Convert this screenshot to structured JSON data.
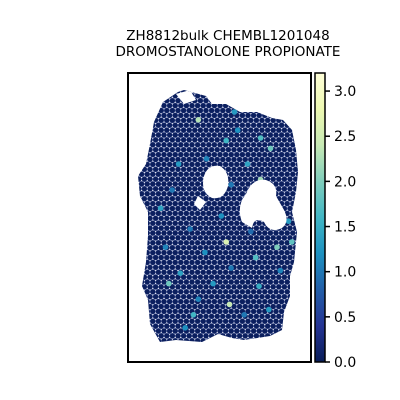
{
  "chart_data": {
    "type": "heatmap",
    "title_lines": [
      "ZH8812bulk CHEMBL1201048",
      "DROMOSTANOLONE PROPIONATE"
    ],
    "colorbar": {
      "min": 0.0,
      "max": 3.2,
      "ticks": [
        0.0,
        0.5,
        1.0,
        1.5,
        2.0,
        2.5,
        3.0
      ],
      "tick_labels": [
        "0.0",
        "0.5",
        "1.0",
        "1.5",
        "2.0",
        "2.5",
        "3.0"
      ],
      "colormap": "YlGnBu_r",
      "colors": [
        "#081d58",
        "#253494",
        "#225ea8",
        "#1d91c0",
        "#41b6c4",
        "#7fcdbb",
        "#c7e9b4",
        "#edf8b1",
        "#ffffd9"
      ]
    },
    "spots": {
      "background_value": 0.05,
      "background_color": "#0b1f5e",
      "highlights": [
        {
          "col": 0.38,
          "row": 0.13,
          "value": 2.3
        },
        {
          "col": 0.55,
          "row": 0.21,
          "value": 1.6
        },
        {
          "col": 0.62,
          "row": 0.17,
          "value": 1.2
        },
        {
          "col": 0.76,
          "row": 0.2,
          "value": 1.7
        },
        {
          "col": 0.82,
          "row": 0.24,
          "value": 1.9
        },
        {
          "col": 0.43,
          "row": 0.28,
          "value": 1.1
        },
        {
          "col": 0.68,
          "row": 0.3,
          "value": 1.4
        },
        {
          "col": 0.26,
          "row": 0.3,
          "value": 1.3
        },
        {
          "col": 0.76,
          "row": 0.36,
          "value": 2.2
        },
        {
          "col": 0.67,
          "row": 0.44,
          "value": 1.8
        },
        {
          "col": 0.8,
          "row": 0.43,
          "value": 1.5
        },
        {
          "col": 0.15,
          "row": 0.47,
          "value": 1.4
        },
        {
          "col": 0.52,
          "row": 0.5,
          "value": 1.2
        },
        {
          "col": 0.93,
          "row": 0.52,
          "value": 1.3
        },
        {
          "col": 0.33,
          "row": 0.55,
          "value": 1.0
        },
        {
          "col": 0.7,
          "row": 0.56,
          "value": 0.9
        },
        {
          "col": 0.55,
          "row": 0.6,
          "value": 2.6
        },
        {
          "col": 0.18,
          "row": 0.62,
          "value": 1.1
        },
        {
          "col": 0.86,
          "row": 0.62,
          "value": 2.0
        },
        {
          "col": 0.42,
          "row": 0.64,
          "value": 1.2
        },
        {
          "col": 0.73,
          "row": 0.66,
          "value": 1.7
        },
        {
          "col": 0.95,
          "row": 0.6,
          "value": 1.8
        },
        {
          "col": 0.58,
          "row": 0.7,
          "value": 1.0
        },
        {
          "col": 0.27,
          "row": 0.72,
          "value": 1.4
        },
        {
          "col": 0.88,
          "row": 0.71,
          "value": 1.1
        },
        {
          "col": 0.2,
          "row": 0.76,
          "value": 1.9
        },
        {
          "col": 0.47,
          "row": 0.76,
          "value": 1.3
        },
        {
          "col": 0.75,
          "row": 0.77,
          "value": 1.5
        },
        {
          "col": 0.38,
          "row": 0.82,
          "value": 1.1
        },
        {
          "col": 0.57,
          "row": 0.84,
          "value": 2.4
        },
        {
          "col": 0.66,
          "row": 0.88,
          "value": 1.0
        },
        {
          "col": 0.35,
          "row": 0.88,
          "value": 1.6
        },
        {
          "col": 0.3,
          "row": 0.93,
          "value": 1.2
        },
        {
          "col": 0.81,
          "row": 0.86,
          "value": 1.3
        },
        {
          "col": 0.58,
          "row": 0.38,
          "value": 1.0
        },
        {
          "col": 0.48,
          "row": 0.4,
          "value": 1.4
        },
        {
          "col": 0.22,
          "row": 0.4,
          "value": 1.0
        },
        {
          "col": 0.6,
          "row": 0.1,
          "value": 1.3
        }
      ]
    }
  }
}
